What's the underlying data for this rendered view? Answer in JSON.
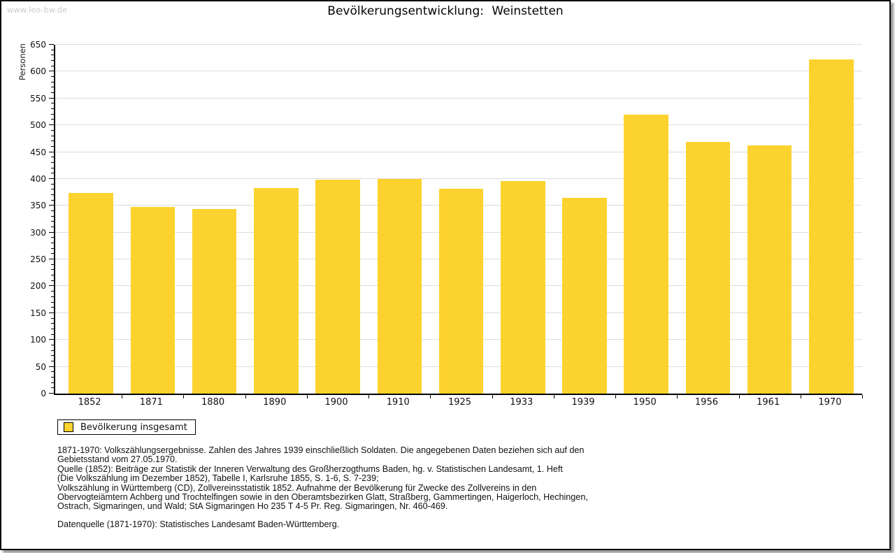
{
  "page": {
    "watermark": "www.leo-bw.de",
    "title": "Bevölkerungsentwicklung: Weinstetten"
  },
  "chart_data": {
    "type": "bar",
    "title": "Bevölkerungsentwicklung: Weinstetten",
    "xlabel": "",
    "ylabel": "Personen",
    "categories": [
      "1852",
      "1871",
      "1880",
      "1890",
      "1900",
      "1910",
      "1925",
      "1933",
      "1939",
      "1950",
      "1956",
      "1961",
      "1970"
    ],
    "series": [
      {
        "name": "Bevölkerung insgesamt",
        "values": [
          374,
          348,
          344,
          383,
          398,
          400,
          382,
          396,
          365,
          520,
          469,
          462,
          623
        ]
      }
    ],
    "ylim": [
      0,
      650
    ],
    "y_major_step": 50,
    "y_minor_step": 10,
    "grid": "horizontal-only",
    "legend_position": "bottom-left",
    "bar_color": "#FCD32E",
    "grid_color": "#dcdcdc"
  },
  "legend": {
    "items": [
      {
        "label": "Bevölkerung insgesamt",
        "color": "#FCD32E"
      }
    ]
  },
  "footnotes": {
    "lines": [
      "1871-1970: Volkszählungsergebnisse. Zahlen des Jahres 1939 einschließlich Soldaten. Die angegebenen Daten beziehen sich auf den",
      "Gebietsstand vom 27.05.1970.",
      "Quelle (1852): Beiträge zur Statistik der Inneren Verwaltung des Großherzogthums Baden, hg. v. Statistischen Landesamt, 1. Heft",
      "(Die Volkszählung im Dezember 1852), Tabelle I, Karlsruhe 1855, S. 1-6, S. 7-239;",
      "Volkszählung in Württemberg (CD), Zollvereinsstatistik 1852. Aufnahme der Bevölkerung für Zwecke des Zollvereins in den",
      "Obervogteiämtern Achberg und Trochtelfingen sowie in den Oberamtsbezirken Glatt, Straßberg, Gammertingen, Haigerloch, Hechingen,",
      "Ostrach, Sigmaringen, und Wald; StA Sigmaringen Ho 235 T 4-5 Pr. Reg. Sigmaringen, Nr. 460-469."
    ],
    "datenquelle": "Datenquelle (1871-1970): Statistisches Landesamt Baden-Württemberg."
  }
}
